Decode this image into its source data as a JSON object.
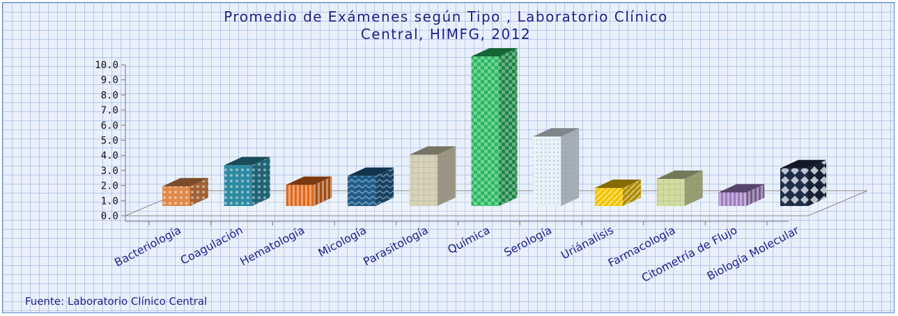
{
  "chart_data": {
    "type": "bar",
    "title_lines": [
      "Promedio de Exámenes según Tipo , Laboratorio Clínico",
      "Central, HIMFG, 2012"
    ],
    "xlabel": "",
    "ylabel": "",
    "ylim": [
      0,
      10
    ],
    "yticks": [
      "0.0",
      "1.0",
      "2.0",
      "3.0",
      "4.0",
      "5.0",
      "6.0",
      "7.0",
      "8.0",
      "9.0",
      "10.0"
    ],
    "categories": [
      "Bacteriología",
      "Coagulación",
      "Hematología",
      "Micología",
      "Parasitología",
      "Química",
      "Serología",
      "Uriánalisis",
      "Farmacología",
      "Citometría  de Flujo",
      "Biología Molecular"
    ],
    "values": [
      1.3,
      2.7,
      1.4,
      2.0,
      3.4,
      9.9,
      4.6,
      1.2,
      1.8,
      0.9,
      2.5
    ],
    "bar_colors": [
      "#e0894a",
      "#2e8aa2",
      "#e06818",
      "#1f5c8a",
      "#d8d2b8",
      "#28b860",
      "#e8f2f8",
      "#f2c400",
      "#d2dca0",
      "#9e7bc0",
      "#1e2e48"
    ],
    "source": "Fuente: Laboratorio Clínico Central",
    "grid": false,
    "legend": "none"
  }
}
